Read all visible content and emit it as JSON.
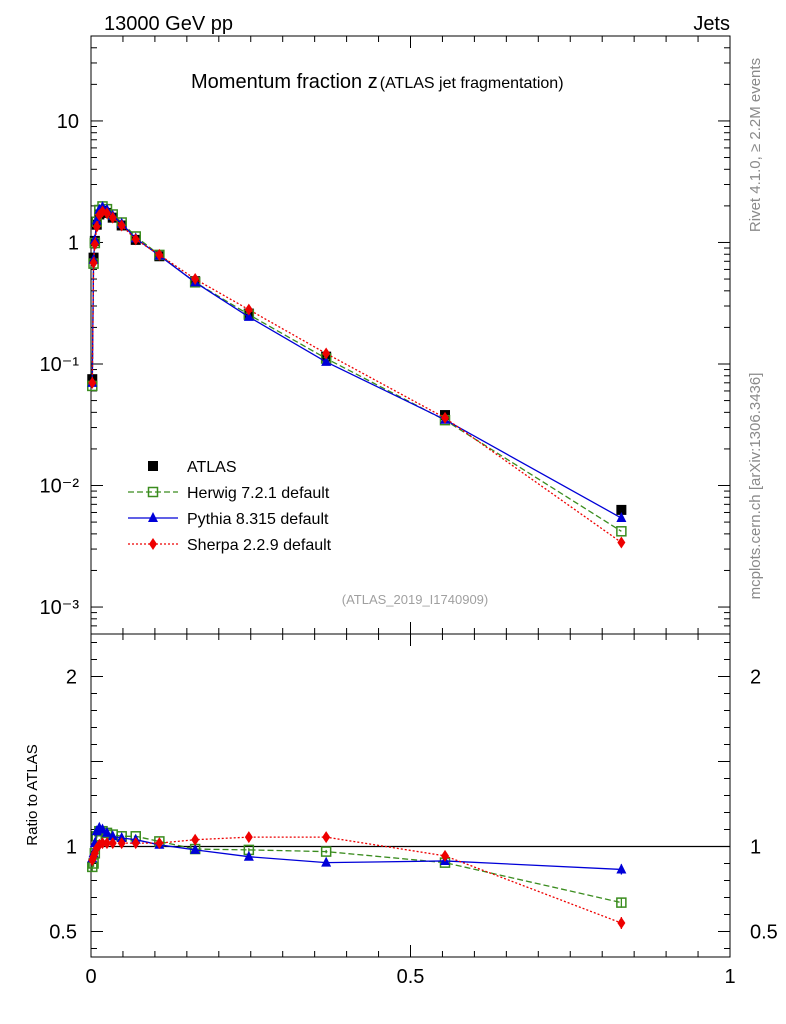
{
  "header": {
    "left": "13000 GeV pp",
    "right": "Jets"
  },
  "side_labels": {
    "version": "Rivet 4.1.0, ≥ 2.2M events",
    "source": "mcplots.cern.ch [arXiv:1306.3436]"
  },
  "chart_data": [
    {
      "type": "line",
      "panel": "main",
      "title": "Momentum fraction z",
      "subtitle": "(ATLAS jet fragmentation)",
      "analysis_tag": "(ATLAS_2019_I1740909)",
      "yscale": "log",
      "xlim": [
        0,
        1
      ],
      "ylim": [
        0.0006,
        50
      ],
      "y_ticks": [
        {
          "value": 10,
          "label": "10"
        },
        {
          "value": 1,
          "label": "1"
        },
        {
          "value": 0.1,
          "label": "10⁻¹"
        },
        {
          "value": 0.01,
          "label": "10⁻²"
        },
        {
          "value": 0.001,
          "label": "10⁻³"
        }
      ],
      "legend_position": "bottom-left",
      "series": [
        {
          "name": "ATLAS",
          "label": "ATLAS",
          "color": "#000000",
          "marker": "square-filled",
          "line": "none",
          "x": [
            0.002,
            0.004,
            0.006,
            0.009,
            0.013,
            0.018,
            0.025,
            0.034,
            0.048,
            0.07,
            0.107,
            0.163,
            0.247,
            0.368,
            0.554,
            0.83
          ],
          "y": [
            0.075,
            0.75,
            1.03,
            1.4,
            1.7,
            1.82,
            1.75,
            1.6,
            1.38,
            1.05,
            0.77,
            0.48,
            0.26,
            0.115,
            0.038,
            0.0063
          ]
        },
        {
          "name": "Herwig",
          "label": "Herwig 7.2.1 default",
          "color": "#3a8c1e",
          "marker": "square-open",
          "line": "dashed",
          "x": [
            0.002,
            0.004,
            0.006,
            0.009,
            0.013,
            0.018,
            0.025,
            0.034,
            0.048,
            0.07,
            0.107,
            0.163,
            0.247,
            0.368,
            0.554,
            0.83
          ],
          "y": [
            0.066,
            0.67,
            0.99,
            1.48,
            1.85,
            1.98,
            1.88,
            1.7,
            1.46,
            1.12,
            0.79,
            0.47,
            0.255,
            0.111,
            0.0345,
            0.0042
          ]
        },
        {
          "name": "Pythia",
          "label": "Pythia 8.315 default",
          "color": "#0000d8",
          "marker": "triangle-filled",
          "line": "solid",
          "x": [
            0.002,
            0.004,
            0.006,
            0.009,
            0.013,
            0.018,
            0.025,
            0.034,
            0.048,
            0.07,
            0.107,
            0.163,
            0.247,
            0.368,
            0.554,
            0.83
          ],
          "y": [
            0.07,
            0.72,
            1.05,
            1.52,
            1.86,
            1.96,
            1.86,
            1.66,
            1.43,
            1.08,
            0.78,
            0.47,
            0.244,
            0.104,
            0.0348,
            0.0054
          ]
        },
        {
          "name": "Sherpa",
          "label": "Sherpa 2.2.9 default",
          "color": "#ee0000",
          "marker": "diamond-filled",
          "line": "dotted",
          "x": [
            0.002,
            0.004,
            0.006,
            0.009,
            0.013,
            0.018,
            0.025,
            0.034,
            0.048,
            0.07,
            0.107,
            0.163,
            0.247,
            0.368,
            0.554,
            0.83
          ],
          "y": [
            0.07,
            0.68,
            0.97,
            1.35,
            1.68,
            1.8,
            1.74,
            1.6,
            1.38,
            1.06,
            0.79,
            0.5,
            0.28,
            0.122,
            0.036,
            0.0034
          ]
        }
      ]
    },
    {
      "type": "line",
      "panel": "ratio",
      "ylabel": "Ratio to ATLAS",
      "xlim": [
        0,
        1
      ],
      "ylim": [
        0.35,
        2.25
      ],
      "y_ticks": [
        {
          "value": 0.5,
          "label": "0.5"
        },
        {
          "value": 1,
          "label": "1"
        },
        {
          "value": 2,
          "label": "2"
        }
      ],
      "x_ticks": [
        {
          "value": 0,
          "label": "0"
        },
        {
          "value": 0.5,
          "label": "0.5"
        },
        {
          "value": 1,
          "label": "1"
        }
      ],
      "reference_line": 1,
      "series": [
        {
          "name": "Herwig",
          "color": "#3a8c1e",
          "marker": "square-open",
          "line": "dashed",
          "x": [
            0.002,
            0.004,
            0.006,
            0.009,
            0.013,
            0.018,
            0.025,
            0.034,
            0.048,
            0.07,
            0.107,
            0.163,
            0.247,
            0.368,
            0.554,
            0.83
          ],
          "y": [
            0.88,
            0.9,
            0.96,
            1.06,
            1.09,
            1.09,
            1.08,
            1.07,
            1.06,
            1.06,
            1.03,
            0.985,
            0.98,
            0.97,
            0.905,
            0.67
          ],
          "err": [
            0.03,
            0.02,
            0.015,
            0.01,
            0.01,
            0.01,
            0.01,
            0.01,
            0.01,
            0.01,
            0.01,
            0.01,
            0.01,
            0.01,
            0.01,
            0.03
          ]
        },
        {
          "name": "Pythia",
          "color": "#0000d8",
          "marker": "triangle-filled",
          "line": "solid",
          "x": [
            0.002,
            0.004,
            0.006,
            0.009,
            0.013,
            0.018,
            0.025,
            0.034,
            0.048,
            0.07,
            0.107,
            0.163,
            0.247,
            0.368,
            0.554,
            0.83
          ],
          "y": [
            0.93,
            0.96,
            1.02,
            1.09,
            1.11,
            1.1,
            1.08,
            1.06,
            1.05,
            1.04,
            1.01,
            0.98,
            0.94,
            0.905,
            0.915,
            0.865
          ],
          "err": [
            0.03,
            0.02,
            0.015,
            0.01,
            0.01,
            0.01,
            0.01,
            0.01,
            0.01,
            0.01,
            0.01,
            0.01,
            0.01,
            0.01,
            0.01,
            0.03
          ]
        },
        {
          "name": "Sherpa",
          "color": "#ee0000",
          "marker": "diamond-filled",
          "line": "dotted",
          "x": [
            0.002,
            0.004,
            0.006,
            0.009,
            0.013,
            0.018,
            0.025,
            0.034,
            0.048,
            0.07,
            0.107,
            0.163,
            0.247,
            0.368,
            0.554,
            0.83
          ],
          "y": [
            0.92,
            0.94,
            0.96,
            0.99,
            1.01,
            1.02,
            1.02,
            1.02,
            1.02,
            1.02,
            1.02,
            1.04,
            1.055,
            1.055,
            0.945,
            0.55
          ],
          "err": [
            0.03,
            0.02,
            0.015,
            0.01,
            0.01,
            0.01,
            0.01,
            0.01,
            0.01,
            0.01,
            0.01,
            0.01,
            0.01,
            0.01,
            0.01,
            0.035
          ]
        }
      ]
    }
  ]
}
